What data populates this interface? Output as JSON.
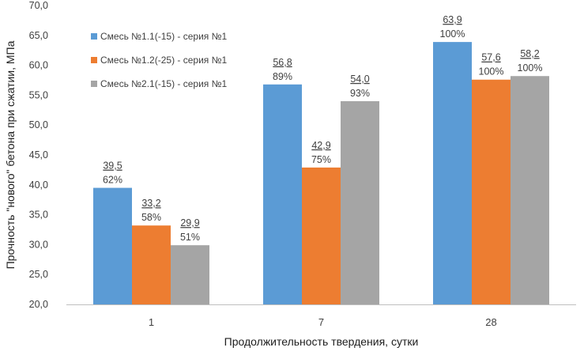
{
  "chart_data": {
    "type": "bar",
    "categories": [
      "1",
      "7",
      "28"
    ],
    "series": [
      {
        "name": "Смесь №1.1(-15) - серия №1",
        "color": "#5b9bd5",
        "values": [
          39.5,
          56.8,
          63.9
        ],
        "value_labels": [
          "39,5",
          "56,8",
          "63,9"
        ],
        "percent_labels": [
          "62%",
          "89%",
          "100%"
        ]
      },
      {
        "name": "Смесь №1.2(-25) - серия №1",
        "color": "#ed7d31",
        "values": [
          33.2,
          42.9,
          57.6
        ],
        "value_labels": [
          "33,2",
          "42,9",
          "57,6"
        ],
        "percent_labels": [
          "58%",
          "75%",
          "100%"
        ]
      },
      {
        "name": "Смесь №2.1(-15) - серия №1",
        "color": "#a5a5a5",
        "values": [
          29.9,
          54.0,
          58.2
        ],
        "value_labels": [
          "29,9",
          "54,0",
          "58,2"
        ],
        "percent_labels": [
          "51%",
          "93%",
          "100%"
        ]
      }
    ],
    "xlabel": "Продолжительность твердения, сутки",
    "ylabel": "Прочность \"нового\" бетона при сжатии, МПа",
    "ylim": [
      20,
      70
    ],
    "ytick_step": 5,
    "ytick_labels": [
      "20,0",
      "25,0",
      "30,0",
      "35,0",
      "40,0",
      "45,0",
      "50,0",
      "55,0",
      "60,0",
      "65,0",
      "70,0"
    ],
    "grid": false,
    "legend_position": "top-left"
  }
}
